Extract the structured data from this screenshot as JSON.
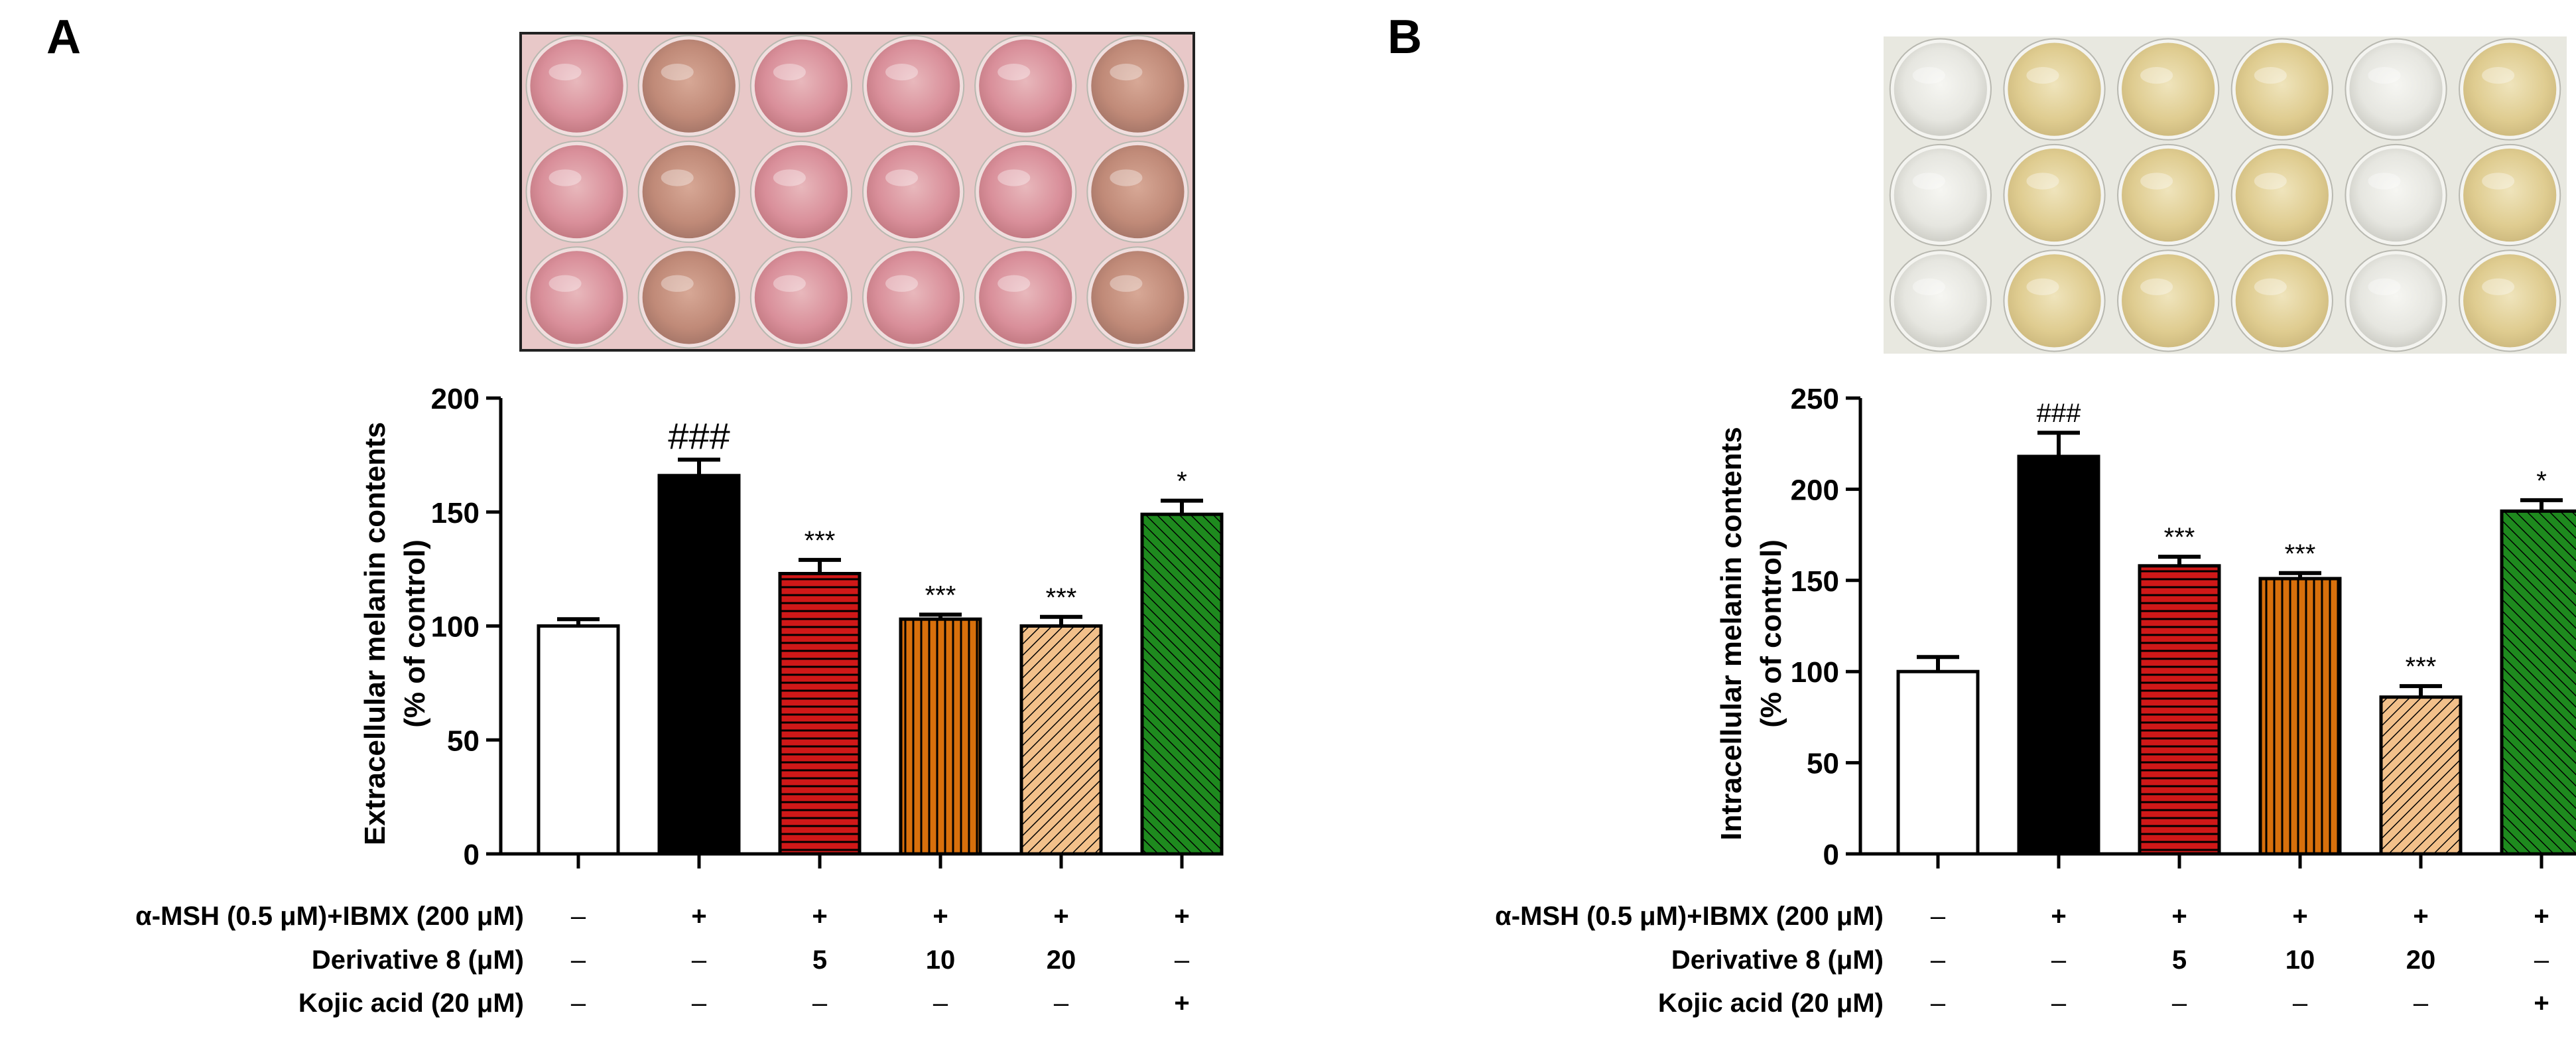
{
  "chart_data": [
    {
      "type": "bar",
      "panel_label": "A",
      "ylabel_line1": "Extracellular melanin contents",
      "ylabel_line2": "(% of control)",
      "ylim": [
        0,
        200
      ],
      "yticks": [
        "0",
        "50",
        "100",
        "150",
        "200"
      ],
      "bars": [
        {
          "value": 100,
          "error": 3,
          "fill": "white",
          "sig": ""
        },
        {
          "value": 166,
          "error": 7,
          "fill": "black",
          "sig": "###"
        },
        {
          "value": 123,
          "error": 6,
          "fill": "red-horizontal",
          "sig": "***"
        },
        {
          "value": 103,
          "error": 2,
          "fill": "orange-vertical",
          "sig": "***"
        },
        {
          "value": 100,
          "error": 4,
          "fill": "tan-diagonal",
          "sig": "***"
        },
        {
          "value": 149,
          "error": 6,
          "fill": "green-diagonal",
          "sig": "*"
        }
      ],
      "conditions": [
        {
          "label": "α-MSH (0.5 μM)+IBMX (200 μM)",
          "values": [
            "–",
            "+",
            "+",
            "+",
            "+",
            "+"
          ]
        },
        {
          "label": "Derivative 8 (μM)",
          "values": [
            "–",
            "–",
            "5",
            "10",
            "20",
            "–"
          ]
        },
        {
          "label": "Kojic acid (20 μM)",
          "values": [
            "–",
            "–",
            "–",
            "–",
            "–",
            "+"
          ]
        }
      ],
      "plate_color": "pink"
    },
    {
      "type": "bar",
      "panel_label": "B",
      "ylabel_line1": "Intracellular melanin contents",
      "ylabel_line2": "(% of control)",
      "ylim": [
        0,
        250
      ],
      "yticks": [
        "0",
        "50",
        "100",
        "150",
        "200",
        "250"
      ],
      "bars": [
        {
          "value": 100,
          "error": 8,
          "fill": "white",
          "sig": ""
        },
        {
          "value": 218,
          "error": 13,
          "fill": "black",
          "sig": "###"
        },
        {
          "value": 158,
          "error": 5,
          "fill": "red-horizontal",
          "sig": "***"
        },
        {
          "value": 151,
          "error": 3,
          "fill": "orange-vertical",
          "sig": "***"
        },
        {
          "value": 86,
          "error": 6,
          "fill": "tan-diagonal",
          "sig": "***"
        },
        {
          "value": 188,
          "error": 6,
          "fill": "green-diagonal",
          "sig": "*"
        }
      ],
      "conditions": [
        {
          "label": "α-MSH (0.5 μM)+IBMX (200 μM)",
          "values": [
            "–",
            "+",
            "+",
            "+",
            "+",
            "+"
          ]
        },
        {
          "label": "Derivative 8 (μM)",
          "values": [
            "–",
            "–",
            "5",
            "10",
            "20",
            "–"
          ]
        },
        {
          "label": "Kojic acid (20 μM)",
          "values": [
            "–",
            "–",
            "–",
            "–",
            "–",
            "+"
          ]
        }
      ],
      "plate_color": "beige"
    }
  ],
  "colors": {
    "red": "#d01818",
    "orange": "#d8700c",
    "tan": "#e8b078",
    "green": "#1e8a1e",
    "pink_plate": "#e8c8c8",
    "pink_well": "#dd98a2",
    "beige_plate": "#e8e8e0",
    "beige_well": "#e3d29a"
  }
}
